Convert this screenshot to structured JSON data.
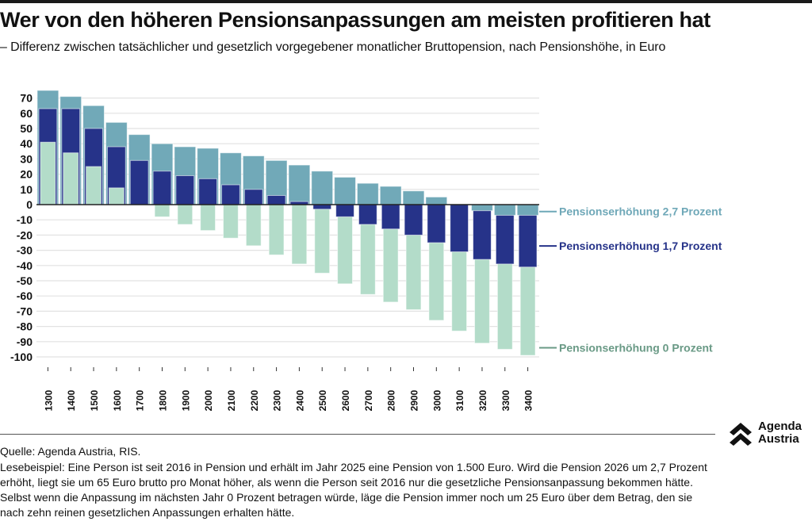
{
  "header": {
    "title": "Wer von den höheren Pensionsanpassungen am meisten profitieren hat",
    "subtitle": "– Differenz zwischen tatsächlicher und gesetzlich vorgegebener monatlicher Bruttopension, nach Pensionshöhe, in Euro"
  },
  "chart_data": {
    "type": "bar",
    "title": "Wer von den höheren Pensionsanpassungen am meisten profitieren hat",
    "subtitle": "Differenz zwischen tatsächlicher und gesetzlich vorgegebener monatlicher Bruttopension, nach Pensionshöhe, in Euro",
    "xlabel": "",
    "ylabel": "",
    "ylim": [
      -100,
      75
    ],
    "yticks": [
      70,
      60,
      50,
      40,
      30,
      20,
      10,
      0,
      -10,
      -20,
      -30,
      -40,
      -50,
      -60,
      -70,
      -80,
      -90,
      -100
    ],
    "grid": true,
    "legend_placement": "right (direct labels)",
    "categories": [
      "1300",
      "1400",
      "1500",
      "1600",
      "1700",
      "1800",
      "1900",
      "2000",
      "2100",
      "2200",
      "2300",
      "2400",
      "2500",
      "2600",
      "2700",
      "2800",
      "2900",
      "3000",
      "3100",
      "3200",
      "3300",
      "3400"
    ],
    "series": [
      {
        "name": "Pensionserhöhung 2,7 Prozent",
        "color": "#71a9b8",
        "label_color": "#6fa8b8",
        "values": [
          75,
          71,
          65,
          54,
          46,
          40,
          38,
          37,
          34,
          32,
          29,
          26,
          22,
          18,
          14,
          12,
          9,
          5,
          0,
          -4,
          -7,
          -7
        ]
      },
      {
        "name": "Pensionserhöhung 1,7 Prozent",
        "color": "#263389",
        "label_color": "#263389",
        "values": [
          63,
          63,
          50,
          38,
          29,
          22,
          19,
          17,
          13,
          10,
          6,
          2,
          -3,
          -8,
          -13,
          -16,
          -20,
          -25,
          -31,
          -36,
          -39,
          -41
        ]
      },
      {
        "name": "Pensionserhöhung 0 Prozent",
        "color": "#b3dcc9",
        "label_color": "#6a9a86",
        "values": [
          41,
          34,
          25,
          11,
          0,
          -8,
          -13,
          -17,
          -22,
          -27,
          -33,
          -39,
          -45,
          -52,
          -59,
          -64,
          -69,
          -76,
          -83,
          -91,
          -95,
          -99
        ]
      }
    ]
  },
  "footer": {
    "source": "Quelle: Agenda Austria, RIS.",
    "note": "Lesebeispiel: Eine Person ist seit 2016 in Pension und erhält im Jahr 2025 eine Pension von 1.500 Euro. Wird die Pension 2026 um 2,7 Prozent erhöht, liegt sie um 65 Euro brutto pro Monat höher, als wenn die Person seit 2016 nur die gesetzliche Pensionsanpassung bekommen hätte. Selbst wenn die Anpassung im nächsten Jahr 0 Prozent betragen würde, läge die Pension immer noch um 25 Euro über dem Betrag, den sie nach zehn reinen gesetzlichen Anpassungen erhalten hätte.",
    "logo_line1": "Agenda",
    "logo_line2": "Austria"
  }
}
